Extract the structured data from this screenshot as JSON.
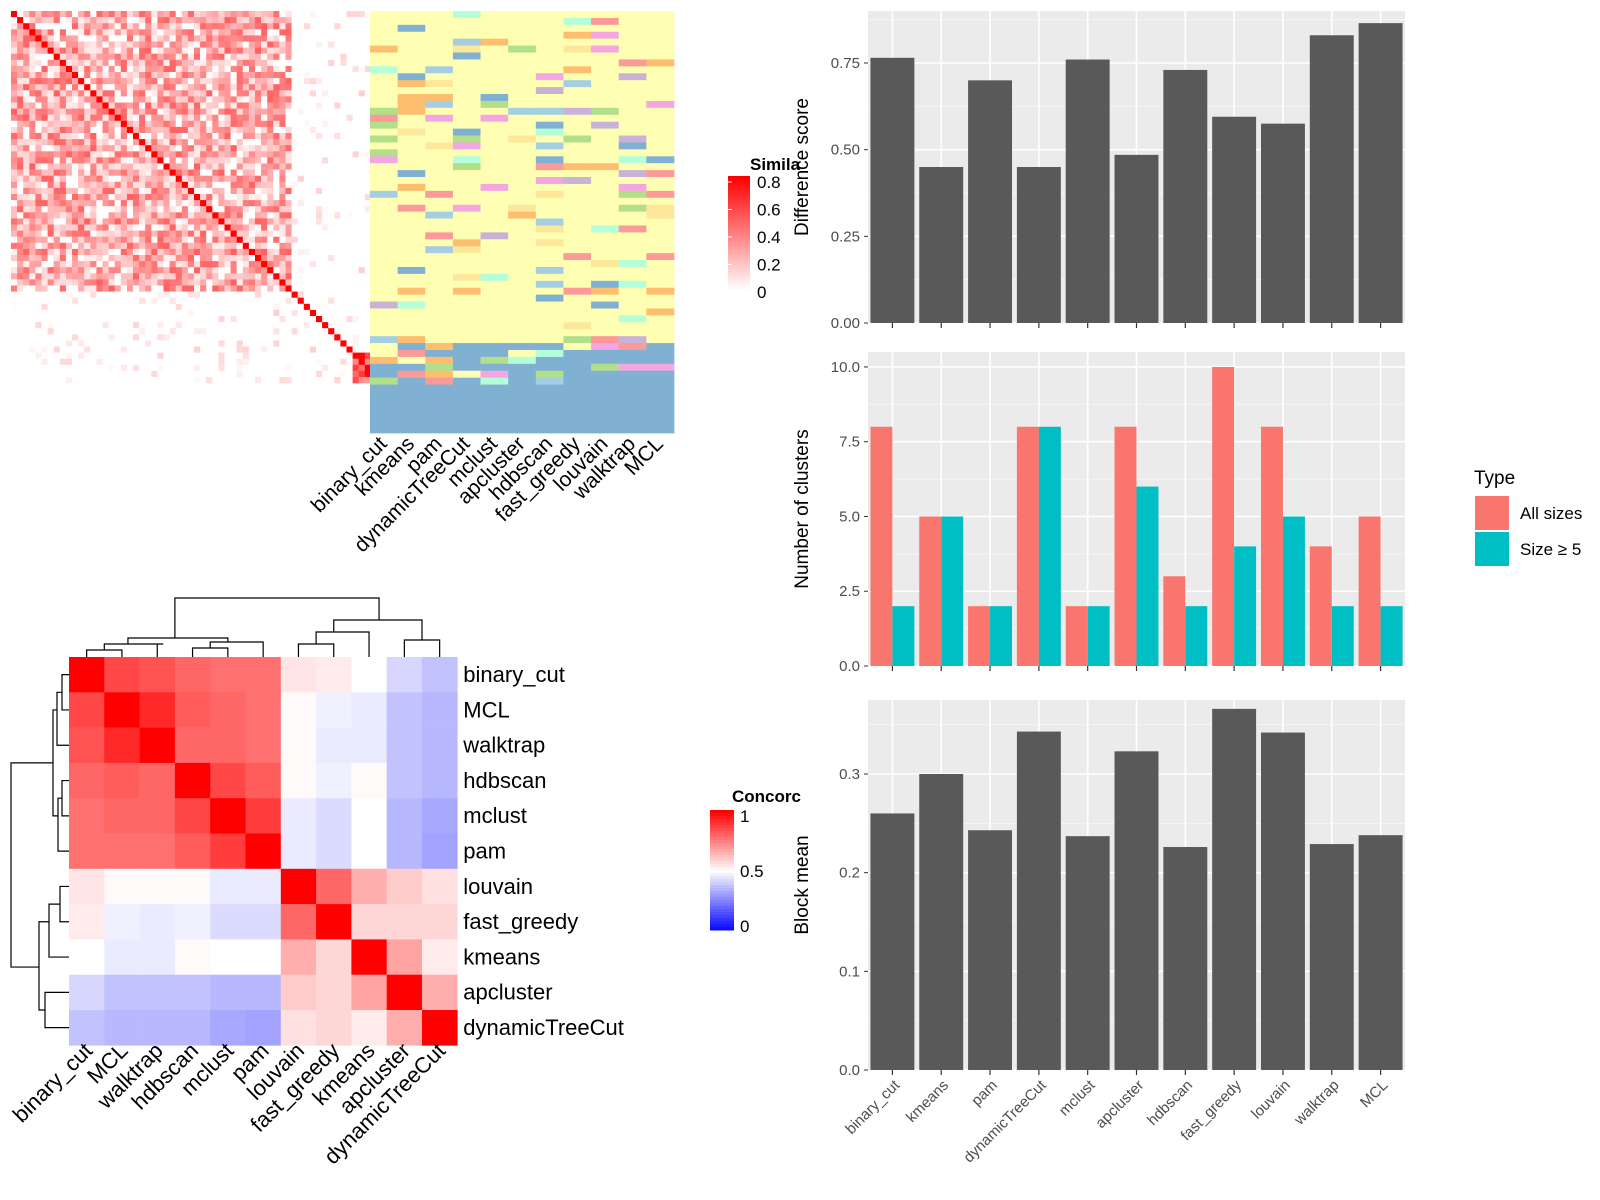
{
  "colors": {
    "heat_red": "#FF0000",
    "panel_bg": "#EBEBEB",
    "bar_dark": "#595959",
    "type_all": "#F8766D",
    "type_size5": "#00BFC4",
    "conc_high": "#FF0000",
    "conc_mid": "#FFFFFF",
    "conc_low": "#0000FF",
    "cluster_palette": [
      "#FFFFB3",
      "#FB9A99",
      "#A6CEE3",
      "#B2DF8A",
      "#CAB2D6",
      "#FDBF6F",
      "#80B1D3",
      "#F4A6E0",
      "#B3FFD9",
      "#FCE79A"
    ]
  },
  "chart_data": [
    {
      "type": "heatmap",
      "id": "similarity-heatmap",
      "legend_title": "Simila",
      "legend_ticks": [
        "0.8",
        "0.6",
        "0.4",
        "0.2",
        "0"
      ],
      "n_terms": 61,
      "color_scale": [
        0,
        0.8
      ]
    },
    {
      "type": "heatmap",
      "id": "cluster-assignment-heatmap",
      "methods": [
        "binary_cut",
        "kmeans",
        "pam",
        "dynamicTreeCut",
        "mclust",
        "apcluster",
        "hdbscan",
        "fast_greedy",
        "louvain",
        "walktrap",
        "MCL"
      ]
    },
    {
      "type": "heatmap",
      "id": "concordance-heatmap",
      "legend_title": "Concorc",
      "legend_ticks": [
        "1",
        "0.5",
        "0"
      ],
      "color_scale": [
        0,
        1
      ],
      "row_labels": [
        "binary_cut",
        "MCL",
        "walktrap",
        "hdbscan",
        "mclust",
        "pam",
        "louvain",
        "fast_greedy",
        "kmeans",
        "apcluster",
        "dynamicTreeCut"
      ],
      "col_labels": [
        "binary_cut",
        "MCL",
        "walktrap",
        "hdbscan",
        "mclust",
        "pam",
        "louvain",
        "fast_greedy",
        "kmeans",
        "apcluster",
        "dynamicTreeCut"
      ],
      "matrix": [
        [
          1.0,
          0.86,
          0.84,
          0.8,
          0.78,
          0.78,
          0.55,
          0.54,
          0.5,
          0.42,
          0.38
        ],
        [
          0.86,
          1.0,
          0.92,
          0.82,
          0.8,
          0.78,
          0.51,
          0.47,
          0.46,
          0.38,
          0.36
        ],
        [
          0.84,
          0.92,
          1.0,
          0.8,
          0.8,
          0.78,
          0.51,
          0.46,
          0.46,
          0.38,
          0.36
        ],
        [
          0.8,
          0.82,
          0.8,
          1.0,
          0.86,
          0.82,
          0.51,
          0.47,
          0.51,
          0.38,
          0.36
        ],
        [
          0.78,
          0.8,
          0.8,
          0.86,
          1.0,
          0.88,
          0.46,
          0.43,
          0.5,
          0.36,
          0.33
        ],
        [
          0.78,
          0.78,
          0.78,
          0.82,
          0.88,
          1.0,
          0.46,
          0.43,
          0.5,
          0.36,
          0.32
        ],
        [
          0.55,
          0.51,
          0.51,
          0.51,
          0.46,
          0.46,
          1.0,
          0.8,
          0.66,
          0.6,
          0.56
        ],
        [
          0.54,
          0.47,
          0.46,
          0.47,
          0.43,
          0.43,
          0.8,
          1.0,
          0.58,
          0.58,
          0.58
        ],
        [
          0.5,
          0.46,
          0.46,
          0.51,
          0.5,
          0.5,
          0.66,
          0.58,
          1.0,
          0.68,
          0.54
        ],
        [
          0.42,
          0.38,
          0.38,
          0.38,
          0.36,
          0.36,
          0.6,
          0.58,
          0.68,
          1.0,
          0.66
        ],
        [
          0.38,
          0.36,
          0.36,
          0.36,
          0.33,
          0.32,
          0.56,
          0.58,
          0.54,
          0.66,
          1.0
        ]
      ]
    },
    {
      "type": "bar",
      "id": "difference-score",
      "ylabel": "Difference score",
      "categories": [
        "binary_cut",
        "kmeans",
        "pam",
        "dynamicTreeCut",
        "mclust",
        "apcluster",
        "hdbscan",
        "fast_greedy",
        "louvain",
        "walktrap",
        "MCL"
      ],
      "values": [
        0.765,
        0.45,
        0.7,
        0.45,
        0.76,
        0.485,
        0.73,
        0.595,
        0.575,
        0.83,
        0.865
      ],
      "ylim": [
        0,
        0.9
      ],
      "yticks": [
        0,
        0.25,
        0.5,
        0.75
      ],
      "ytick_labels": [
        "0.00",
        "0.25",
        "0.50",
        "0.75"
      ]
    },
    {
      "type": "bar",
      "id": "number-of-clusters",
      "ylabel": "Number of clusters",
      "categories": [
        "binary_cut",
        "kmeans",
        "pam",
        "dynamicTreeCut",
        "mclust",
        "apcluster",
        "hdbscan",
        "fast_greedy",
        "louvain",
        "walktrap",
        "MCL"
      ],
      "series": [
        {
          "name": "All sizes",
          "values": [
            8,
            5,
            2,
            8,
            2,
            8,
            3,
            10,
            8,
            4,
            5
          ]
        },
        {
          "name": "Size ≥ 5",
          "values": [
            2,
            5,
            2,
            8,
            2,
            6,
            2,
            4,
            5,
            2,
            2
          ]
        }
      ],
      "legend_title": "Type",
      "legend_position": "right",
      "ylim": [
        0,
        10.5
      ],
      "yticks": [
        0,
        2.5,
        5,
        7.5,
        10
      ],
      "ytick_labels": [
        "0.0",
        "2.5",
        "5.0",
        "7.5",
        "10.0"
      ]
    },
    {
      "type": "bar",
      "id": "block-mean",
      "ylabel": "Block mean",
      "categories": [
        "binary_cut",
        "kmeans",
        "pam",
        "dynamicTreeCut",
        "mclust",
        "apcluster",
        "hdbscan",
        "fast_greedy",
        "louvain",
        "walktrap",
        "MCL"
      ],
      "values": [
        0.26,
        0.3,
        0.243,
        0.343,
        0.237,
        0.323,
        0.226,
        0.366,
        0.342,
        0.229,
        0.238
      ],
      "ylim": [
        0,
        0.375
      ],
      "yticks": [
        0,
        0.1,
        0.2,
        0.3
      ],
      "ytick_labels": [
        "0.0",
        "0.1",
        "0.2",
        "0.3"
      ]
    }
  ]
}
